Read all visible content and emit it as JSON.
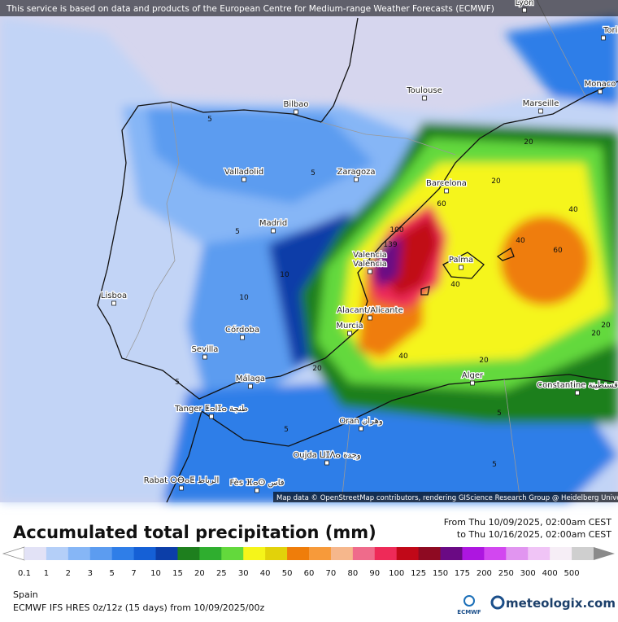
{
  "banner": "This service is based on data and products of the European Centre for Medium-range Weather Forecasts (ECMWF)",
  "attribution": "Map data © OpenStreetMap contributors, rendering GIScience Research Group @ Heidelberg University",
  "cities": [
    "Lyon",
    "Torin",
    "Monaco",
    "Toulouse",
    "Marseille",
    "Bilbao",
    "Valladolid",
    "Zaragoza",
    "Barcelona",
    "Madrid",
    "Valencia",
    "València",
    "Palma",
    "Lisboa",
    "Alacant/Alicante",
    "Murcia",
    "Córdoba",
    "Sevilla",
    "Málaga",
    "Tanger ⵟⴰⵏⵊⴰ طنجة",
    "Alger",
    "Constantine قسنطينة",
    "Oran وهران",
    "Oujda ⵡⵊⴷⴰ وجدة",
    "Rabat ⵔⴱⴰⵟ الرباط",
    "Fès ⴼⴰⵙ فاس"
  ],
  "contour_labels": [
    "139",
    "100",
    "60",
    "60",
    "40",
    "40",
    "40",
    "40",
    "20",
    "20",
    "20",
    "20",
    "20",
    "20",
    "5",
    "5",
    "5",
    "5",
    "5",
    "5",
    "5",
    "10",
    "10"
  ],
  "title": "Accumulated total precipitation (mm)",
  "period": {
    "from": "From Thu 10/09/2025, 02:00am CEST",
    "to": "to Thu 10/16/2025, 02:00am CEST"
  },
  "legend": {
    "ticks": [
      "0.1",
      "1",
      "2",
      "3",
      "5",
      "7",
      "10",
      "15",
      "20",
      "25",
      "30",
      "40",
      "50",
      "60",
      "70",
      "80",
      "90",
      "100",
      "125",
      "150",
      "175",
      "200",
      "250",
      "300",
      "400",
      "500"
    ],
    "colors": [
      "#e2e2f6",
      "#b4cff8",
      "#86b6f6",
      "#5c9cf0",
      "#2f7ee8",
      "#1560d6",
      "#0c3ea8",
      "#1e7f1e",
      "#2fae2f",
      "#63d93c",
      "#f5f51a",
      "#e2d20a",
      "#ef7d0a",
      "#f79a3a",
      "#f6b78c",
      "#ef6b8b",
      "#ee2a58",
      "#c10818",
      "#8e0a22",
      "#6a0a84",
      "#ad16e0",
      "#d247f0",
      "#e195f0",
      "#f0c4f6",
      "#f6eef6",
      "#cfcfcf"
    ],
    "under_color": "#ffffff",
    "over_color": "#8a8a8a"
  },
  "region": "Spain",
  "model": "ECMWF IFS HRES 0z/12z (15 days) from  10/09/2025/00z",
  "logo_small": "ECMWF",
  "logo": "meteologix.com"
}
